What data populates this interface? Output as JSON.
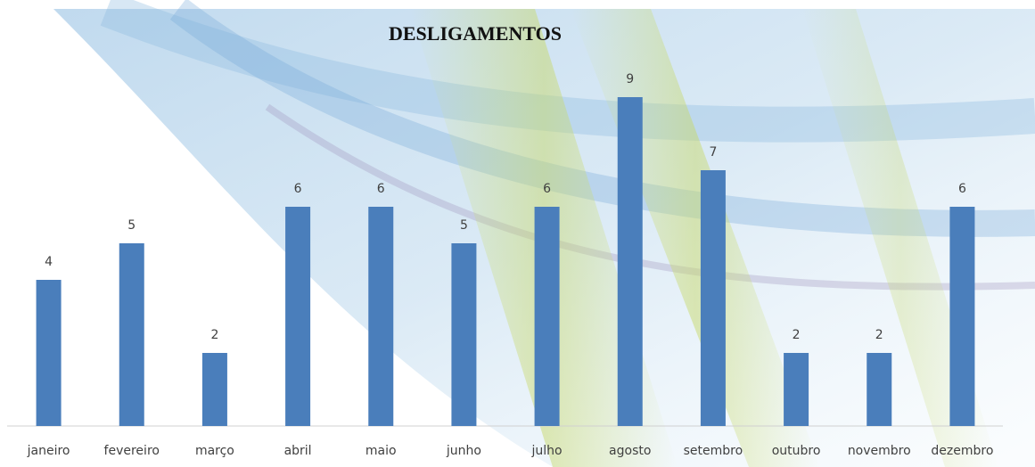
{
  "chart_data": {
    "type": "bar",
    "title": "DESLIGAMENTOS",
    "categories": [
      "janeiro",
      "fevereiro",
      "março",
      "abril",
      "maio",
      "junho",
      "julho",
      "agosto",
      "setembro",
      "outubro",
      "novembro",
      "dezembro"
    ],
    "values": [
      4,
      5,
      2,
      6,
      6,
      5,
      6,
      9,
      7,
      2,
      2,
      6
    ],
    "color": "#4a7ebb",
    "ylim": [
      0,
      10
    ],
    "grid": false
  }
}
